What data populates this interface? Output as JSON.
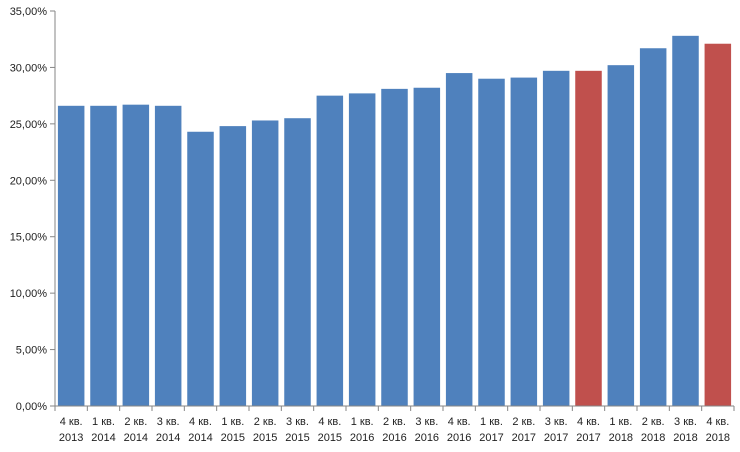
{
  "chart_data": {
    "type": "bar",
    "ylim": [
      0,
      35
    ],
    "yticks": [
      0,
      5,
      10,
      15,
      20,
      25,
      30,
      35
    ],
    "ytick_labels": [
      "0,00%",
      "5,00%",
      "10,00%",
      "15,00%",
      "20,00%",
      "25,00%",
      "30,00%",
      "35,00%"
    ],
    "grid": false,
    "categories": [
      [
        "4 кв.",
        "2013"
      ],
      [
        "1 кв.",
        "2014"
      ],
      [
        "2 кв.",
        "2014"
      ],
      [
        "3 кв.",
        "2014"
      ],
      [
        "4 кв.",
        "2014"
      ],
      [
        "1 кв.",
        "2015"
      ],
      [
        "2 кв.",
        "2015"
      ],
      [
        "3 кв.",
        "2015"
      ],
      [
        "4 кв.",
        "2015"
      ],
      [
        "1 кв.",
        "2016"
      ],
      [
        "2 кв.",
        "2016"
      ],
      [
        "3 кв.",
        "2016"
      ],
      [
        "4 кв.",
        "2016"
      ],
      [
        "1 кв.",
        "2017"
      ],
      [
        "2 кв.",
        "2017"
      ],
      [
        "3 кв.",
        "2017"
      ],
      [
        "4 кв.",
        "2017"
      ],
      [
        "1 кв.",
        "2018"
      ],
      [
        "2 кв.",
        "2018"
      ],
      [
        "3 кв.",
        "2018"
      ],
      [
        "4 кв.",
        "2018"
      ]
    ],
    "values": [
      26.6,
      26.6,
      26.7,
      26.6,
      24.3,
      24.8,
      25.3,
      25.5,
      27.5,
      27.7,
      28.1,
      28.2,
      29.5,
      29.0,
      29.1,
      29.7,
      29.7,
      30.2,
      31.7,
      32.8,
      32.1
    ],
    "highlighted_indices": [
      16,
      20
    ],
    "colors": {
      "bar": "#4f81bd",
      "highlight": "#c0504d",
      "axis": "#868686"
    }
  }
}
